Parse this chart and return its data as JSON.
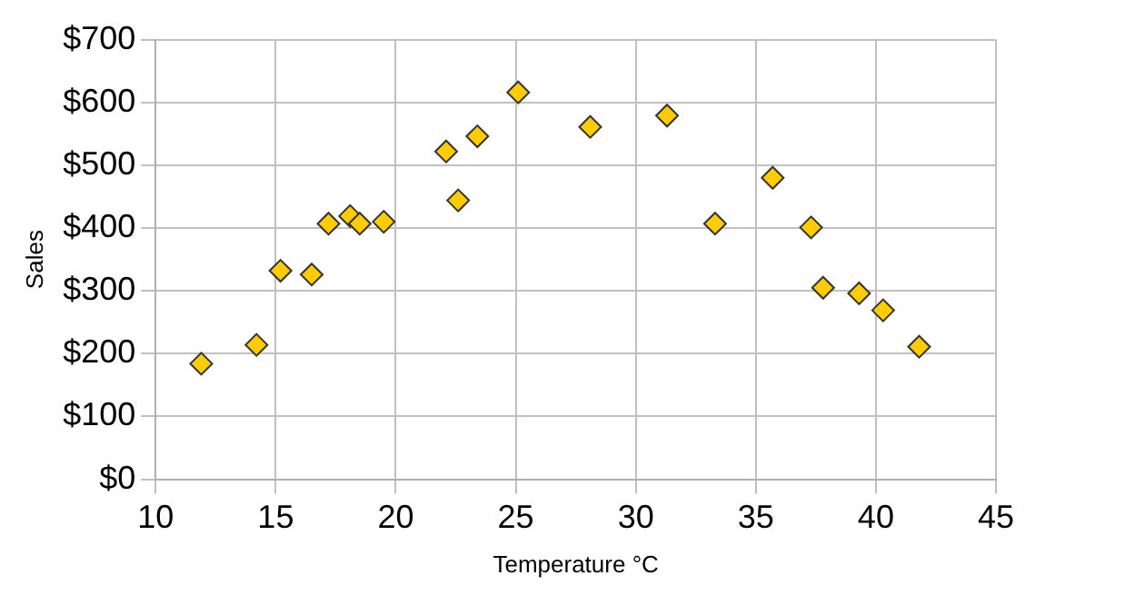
{
  "chart_data": {
    "type": "scatter",
    "xlabel": "Temperature °C",
    "ylabel": "Sales",
    "x": [
      11.9,
      14.2,
      15.2,
      16.5,
      17.2,
      18.1,
      18.5,
      19.5,
      22.1,
      22.6,
      23.4,
      25.1,
      28.1,
      31.3,
      33.3,
      35.7,
      37.3,
      37.8,
      39.3,
      40.3,
      41.8
    ],
    "series": [
      {
        "color": "#ffcc00",
        "values": [
          184,
          214,
          332,
          326,
          407,
          419,
          407,
          410,
          522,
          444,
          546,
          616,
          561,
          579,
          407,
          480,
          401,
          305,
          296,
          269,
          211
        ]
      }
    ],
    "xlim": [
      10,
      45
    ],
    "xticks": [
      10,
      15,
      20,
      25,
      30,
      35,
      40,
      45
    ],
    "ylim": [
      0,
      700
    ],
    "yticks": [
      {
        "value": 0,
        "label": "$0"
      },
      {
        "value": 100,
        "label": "$100"
      },
      {
        "value": 200,
        "label": "$200"
      },
      {
        "value": 300,
        "label": "$300"
      },
      {
        "value": 400,
        "label": "$400"
      },
      {
        "value": 500,
        "label": "$500"
      },
      {
        "value": 600,
        "label": "$600"
      },
      {
        "value": 700,
        "label": "$700"
      }
    ],
    "grid": true,
    "marker": "diamond",
    "legend": false
  }
}
